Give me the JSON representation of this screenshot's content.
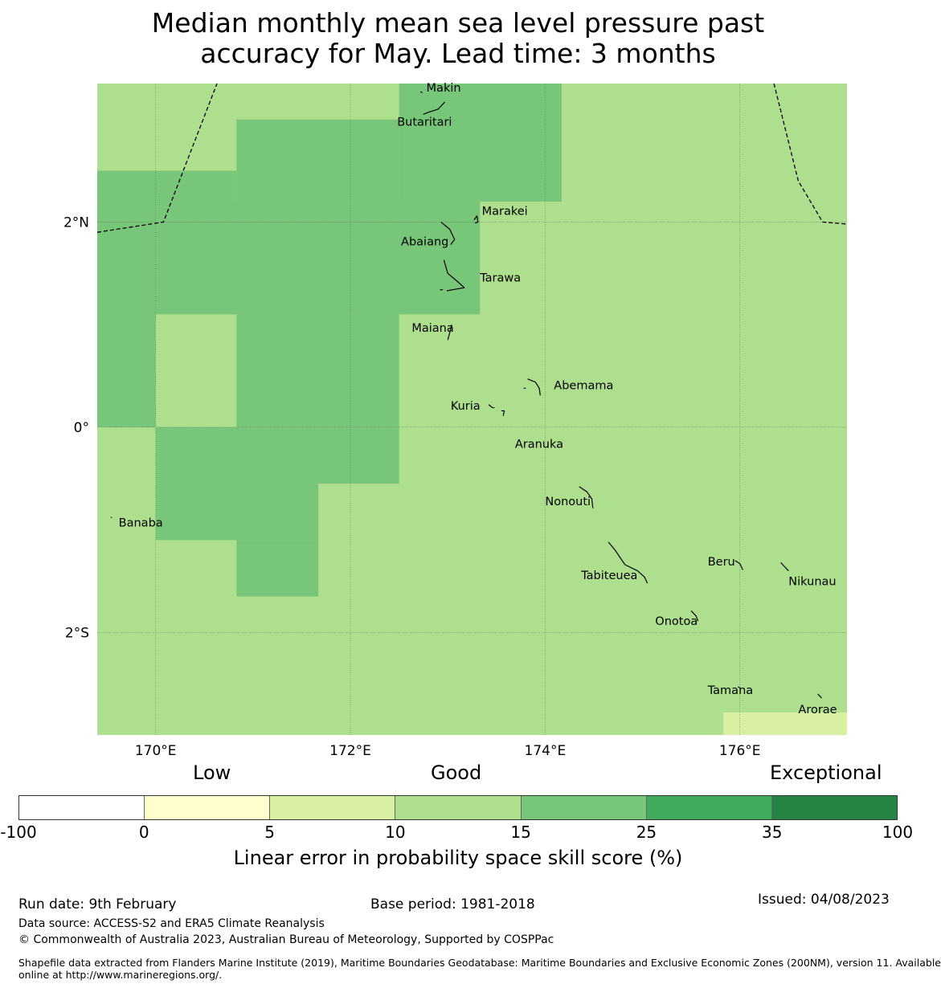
{
  "title_line1": "Median monthly mean sea level pressure past",
  "title_line2": "accuracy for May. Lead time: 3 months",
  "map": {
    "lon_range": [
      169.4,
      177.1
    ],
    "lat_range": [
      -3.0,
      3.35
    ],
    "grid_lons": [
      170,
      172,
      174,
      176
    ],
    "grid_lats": [
      2,
      0,
      -2
    ],
    "lon_labels": [
      "170°E",
      "172°E",
      "174°E",
      "176°E"
    ],
    "lat_labels": [
      "2°N",
      "0°",
      "2°S"
    ],
    "base_color": "#addf8e",
    "cells": [
      {
        "lon": [
          169.4,
          170.0
        ],
        "lat": [
          2.5,
          3.35
        ],
        "color": "#addf8e"
      },
      {
        "lon": [
          170.0,
          170.83
        ],
        "lat": [
          2.5,
          3.35
        ],
        "color": "#addf8e"
      },
      {
        "lon": [
          170.83,
          172.5
        ],
        "lat": [
          3.0,
          3.35
        ],
        "color": "#addf8e"
      },
      {
        "lon": [
          172.5,
          174.17
        ],
        "lat": [
          2.2,
          3.35
        ],
        "color": "#78c679"
      },
      {
        "lon": [
          170.83,
          172.5
        ],
        "lat": [
          2.2,
          3.0
        ],
        "color": "#78c679"
      },
      {
        "lon": [
          169.4,
          170.83
        ],
        "lat": [
          2.2,
          2.5
        ],
        "color": "#78c679"
      },
      {
        "lon": [
          169.4,
          170.0
        ],
        "lat": [
          0,
          2.2
        ],
        "color": "#78c679"
      },
      {
        "lon": [
          170.0,
          173.33
        ],
        "lat": [
          1.1,
          2.2
        ],
        "color": "#78c679"
      },
      {
        "lon": [
          170.83,
          172.5
        ],
        "lat": [
          0,
          1.1
        ],
        "color": "#78c679"
      },
      {
        "lon": [
          170.0,
          172.5
        ],
        "lat": [
          -0.55,
          0
        ],
        "color": "#78c679"
      },
      {
        "lon": [
          170.0,
          171.67
        ],
        "lat": [
          -1.1,
          -0.55
        ],
        "color": "#78c679"
      },
      {
        "lon": [
          170.83,
          171.67
        ],
        "lat": [
          -1.65,
          -1.1
        ],
        "color": "#78c679"
      },
      {
        "lon": [
          175.83,
          177.1
        ],
        "lat": [
          -3.0,
          -2.78
        ],
        "color": "#d9f0a3"
      }
    ],
    "places": [
      {
        "name": "Makin",
        "lon": 172.78,
        "lat": 3.31
      },
      {
        "name": "Butaritari",
        "lon": 172.48,
        "lat": 2.98
      },
      {
        "name": "Marakei",
        "lon": 173.35,
        "lat": 2.11
      },
      {
        "name": "Abaiang",
        "lon": 172.52,
        "lat": 1.81
      },
      {
        "name": "Tarawa",
        "lon": 173.33,
        "lat": 1.46
      },
      {
        "name": "Maiana",
        "lon": 172.63,
        "lat": 0.97
      },
      {
        "name": "Abemama",
        "lon": 174.09,
        "lat": 0.41
      },
      {
        "name": "Kuria",
        "lon": 173.03,
        "lat": 0.21
      },
      {
        "name": "Aranuka",
        "lon": 173.69,
        "lat": -0.16
      },
      {
        "name": "Nonouti",
        "lon": 174.0,
        "lat": -0.72
      },
      {
        "name": "Banaba",
        "lon": 169.62,
        "lat": -0.93
      },
      {
        "name": "Beru",
        "lon": 175.67,
        "lat": -1.31
      },
      {
        "name": "Tabiteuea",
        "lon": 174.37,
        "lat": -1.44
      },
      {
        "name": "Nikunau",
        "lon": 176.5,
        "lat": -1.5
      },
      {
        "name": "Onotoa",
        "lon": 175.13,
        "lat": -1.89
      },
      {
        "name": "Tamana",
        "lon": 175.67,
        "lat": -2.56
      },
      {
        "name": "Arorae",
        "lon": 176.6,
        "lat": -2.75
      }
    ],
    "islands": [
      [
        [
          172.72,
          3.27
        ],
        [
          172.74,
          3.26
        ]
      ],
      [
        [
          172.97,
          3.17
        ],
        [
          172.9,
          3.1
        ],
        [
          172.8,
          3.07
        ],
        [
          172.75,
          3.05
        ]
      ],
      [
        [
          173.27,
          2.02
        ],
        [
          173.3,
          2.06
        ],
        [
          173.31,
          2.0
        ],
        [
          173.28,
          1.99
        ]
      ],
      [
        [
          172.93,
          2.0
        ],
        [
          173.02,
          1.93
        ],
        [
          173.07,
          1.83
        ],
        [
          173.03,
          1.78
        ]
      ],
      [
        [
          172.96,
          1.63
        ],
        [
          173.0,
          1.5
        ],
        [
          173.1,
          1.42
        ],
        [
          173.17,
          1.36
        ],
        [
          173.05,
          1.34
        ],
        [
          172.99,
          1.33
        ]
      ],
      [
        [
          172.92,
          1.34
        ],
        [
          172.95,
          1.34
        ]
      ],
      [
        [
          173.04,
          1.0
        ],
        [
          173.02,
          0.92
        ],
        [
          173.0,
          0.85
        ]
      ],
      [
        [
          173.82,
          0.47
        ],
        [
          173.9,
          0.44
        ],
        [
          173.94,
          0.38
        ],
        [
          173.95,
          0.31
        ]
      ],
      [
        [
          173.78,
          0.38
        ],
        [
          173.8,
          0.38
        ]
      ],
      [
        [
          173.42,
          0.22
        ],
        [
          173.46,
          0.19
        ],
        [
          173.48,
          0.19
        ]
      ],
      [
        [
          173.55,
          0.16
        ],
        [
          173.58,
          0.16
        ],
        [
          173.57,
          0.11
        ]
      ],
      [
        [
          174.35,
          -0.58
        ],
        [
          174.43,
          -0.63
        ],
        [
          174.48,
          -0.7
        ],
        [
          174.49,
          -0.79
        ]
      ],
      [
        [
          169.54,
          -0.88
        ],
        [
          169.55,
          -0.88
        ]
      ],
      [
        [
          174.65,
          -1.12
        ],
        [
          174.72,
          -1.2
        ],
        [
          174.82,
          -1.34
        ],
        [
          174.95,
          -1.4
        ],
        [
          175.02,
          -1.46
        ],
        [
          175.05,
          -1.52
        ]
      ],
      [
        [
          175.95,
          -1.3
        ],
        [
          176.0,
          -1.33
        ],
        [
          176.03,
          -1.39
        ]
      ],
      [
        [
          176.42,
          -1.32
        ],
        [
          176.45,
          -1.35
        ],
        [
          176.5,
          -1.4
        ]
      ],
      [
        [
          175.5,
          -1.79
        ],
        [
          175.55,
          -1.84
        ],
        [
          175.57,
          -1.89
        ]
      ],
      [
        [
          175.98,
          -2.53
        ],
        [
          176.0,
          -2.54
        ]
      ],
      [
        [
          176.8,
          -2.6
        ],
        [
          176.84,
          -2.64
        ]
      ]
    ],
    "boundaries": [
      [
        [
          169.4,
          1.9
        ],
        [
          170.08,
          2.0
        ],
        [
          170.63,
          3.35
        ]
      ],
      [
        [
          176.35,
          3.35
        ],
        [
          176.6,
          2.4
        ],
        [
          176.85,
          2.0
        ],
        [
          177.1,
          1.98
        ]
      ]
    ]
  },
  "colorbar": {
    "header_low": "Low",
    "header_good": "Good",
    "header_exceptional": "Exceptional",
    "ticks": [
      "-100",
      "0",
      "5",
      "10",
      "15",
      "25",
      "35",
      "100"
    ],
    "colors": [
      "#ffffff",
      "#ffffcc",
      "#d9f0a3",
      "#addf8e",
      "#78c679",
      "#41ab5d",
      "#238443"
    ],
    "label": "Linear error in probability space skill score (%)"
  },
  "footer": {
    "run_date": "Run date: 9th February",
    "base_period": "Base period: 1981-2018",
    "issued": "Issued: 04/08/2023",
    "data_source": "Data source: ACCESS-S2 and ERA5 Climate Reanalysis",
    "copyright": "© Commonwealth of Australia 2023, Australian Bureau of Meteorology, Supported by COSPPac",
    "shapefile_line1": "Shapefile data extracted from Flanders Marine Institute (2019), Maritime Boundaries Geodatabase: Maritime Boundaries and Exclusive Economic Zones (200NM), version 11. Available",
    "shapefile_line2": "online at http://www.marineregions.org/."
  }
}
